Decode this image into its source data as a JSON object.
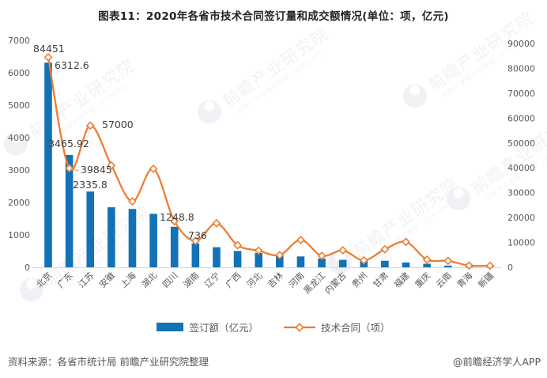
{
  "chart_data": {
    "type": "bar+line",
    "title": "图表11：2020年各省市技术合同签订量和成交额情况(单位：项，亿元)",
    "categories": [
      "北京",
      "广东",
      "江苏",
      "安徽",
      "上海",
      "湖北",
      "四川",
      "湖南",
      "辽宁",
      "广西",
      "河北",
      "吉林",
      "河南",
      "黑龙江",
      "内蒙古",
      "贵州",
      "甘肃",
      "福建",
      "重庆",
      "云南",
      "青海",
      "新疆"
    ],
    "series": [
      {
        "name": "签订额（亿元）",
        "type": "bar",
        "axis": "left",
        "color": "#1372B6",
        "values": [
          6312.6,
          3465.92,
          2335.8,
          1850,
          1800,
          1650,
          1248.8,
          736,
          620,
          505,
          440,
          385,
          335,
          270,
          230,
          220,
          200,
          150,
          110,
          50,
          20,
          15
        ]
      },
      {
        "name": "技术合同（项）",
        "type": "line",
        "axis": "right",
        "color": "#ED7D31",
        "values": [
          84451,
          39845,
          57000,
          41000,
          26500,
          39600,
          18500,
          10600,
          17700,
          8850,
          6700,
          4900,
          11000,
          4600,
          6800,
          2800,
          7250,
          10200,
          3100,
          2600,
          700,
          650
        ]
      }
    ],
    "left_axis": {
      "min": 0,
      "max": 7000,
      "ticks": [
        0,
        1000,
        2000,
        3000,
        4000,
        5000,
        6000,
        7000
      ]
    },
    "right_axis": {
      "min": 0,
      "max": 90000,
      "ticks": [
        0,
        10000,
        20000,
        30000,
        40000,
        50000,
        60000,
        70000,
        80000,
        90000
      ]
    },
    "point_labels": [
      {
        "series": 0,
        "category": "北京",
        "text": "6312.6"
      },
      {
        "series": 0,
        "category": "广东",
        "text": "3465.92"
      },
      {
        "series": 0,
        "category": "江苏",
        "text": "2335.8"
      },
      {
        "series": 0,
        "category": "四川",
        "text": "1248.8"
      },
      {
        "series": 0,
        "category": "湖南",
        "text": "736"
      },
      {
        "series": 1,
        "category": "北京",
        "text": "84451"
      },
      {
        "series": 1,
        "category": "广东",
        "text": "39845"
      },
      {
        "series": 1,
        "category": "江苏",
        "text": "57000"
      }
    ],
    "legend_position": "bottom",
    "grid": "off",
    "x_label_rotation": -45
  },
  "watermark": {
    "text": "前瞻产业研究院",
    "subtext": "中国产业咨询领导者（839599）"
  },
  "footer": {
    "source": "资料来源：各省市统计局 前瞻产业研究院整理",
    "handle": "@前瞻经济学人APP"
  }
}
